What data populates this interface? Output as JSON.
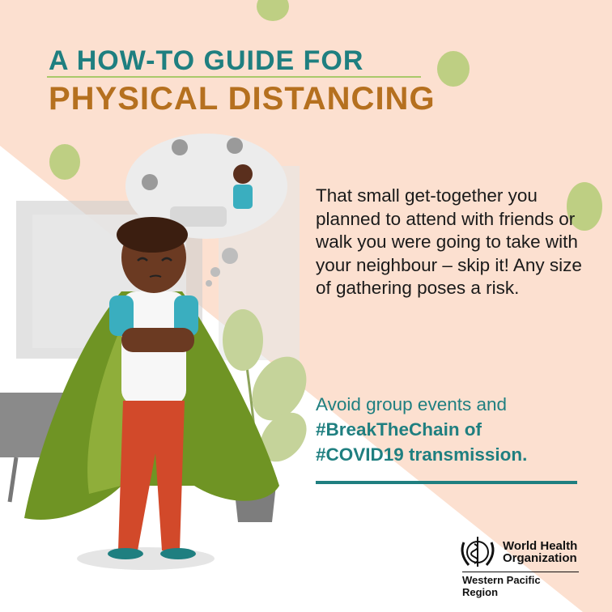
{
  "title": {
    "line1": "A HOW-TO GUIDE FOR",
    "line2": "PHYSICAL DISTANCING"
  },
  "body_text": "That small get-together you planned to attend with friends or walk you were going to take with your neighbour – skip it! Any size of gathering poses a risk.",
  "cta": {
    "line1": "Avoid group events and",
    "line2": "#BreakTheChain of",
    "line3": "#COVID19 transmission."
  },
  "logo": {
    "name_line1": "World Health",
    "name_line2": "Organization",
    "region": "Western Pacific Region"
  },
  "colors": {
    "peach": "#fce0d0",
    "teal": "#1f7f80",
    "ochre": "#b5701f",
    "green": "#a9c96a"
  }
}
